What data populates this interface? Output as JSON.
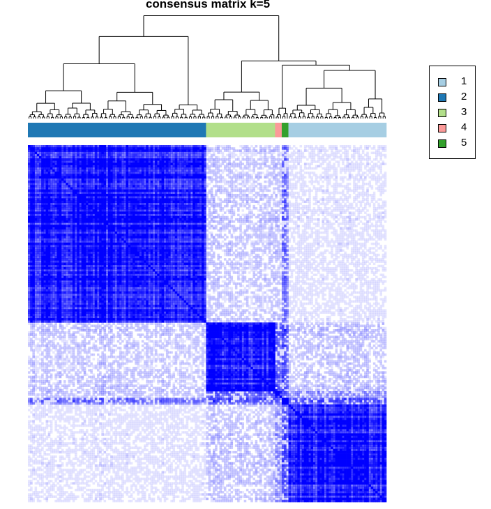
{
  "chart_data": {
    "type": "heatmap",
    "title": "consensus matrix k=5",
    "xlabel": "",
    "ylabel": "",
    "value_range": [
      0,
      1
    ],
    "colors": {
      "low": "#ffffff",
      "high": "#0000ff"
    },
    "legend_position": "top-right",
    "classes": [
      {
        "name": "1",
        "color": "#a6cee3"
      },
      {
        "name": "2",
        "color": "#1f78b4"
      },
      {
        "name": "3",
        "color": "#b2df8a"
      },
      {
        "name": "4",
        "color": "#fb9a99"
      },
      {
        "name": "5",
        "color": "#33a02c"
      }
    ],
    "class_order": [
      "2",
      "3",
      "4",
      "5",
      "1"
    ],
    "class_sizes": [
      80,
      31,
      3,
      3,
      44
    ],
    "block_mean_consensus": [
      [
        0.9,
        0.18,
        0.2,
        0.45,
        0.1
      ],
      [
        0.18,
        0.93,
        0.6,
        0.55,
        0.2
      ],
      [
        0.2,
        0.6,
        0.95,
        0.5,
        0.4
      ],
      [
        0.45,
        0.55,
        0.5,
        0.95,
        0.55
      ],
      [
        0.1,
        0.2,
        0.4,
        0.55,
        0.88
      ]
    ]
  }
}
